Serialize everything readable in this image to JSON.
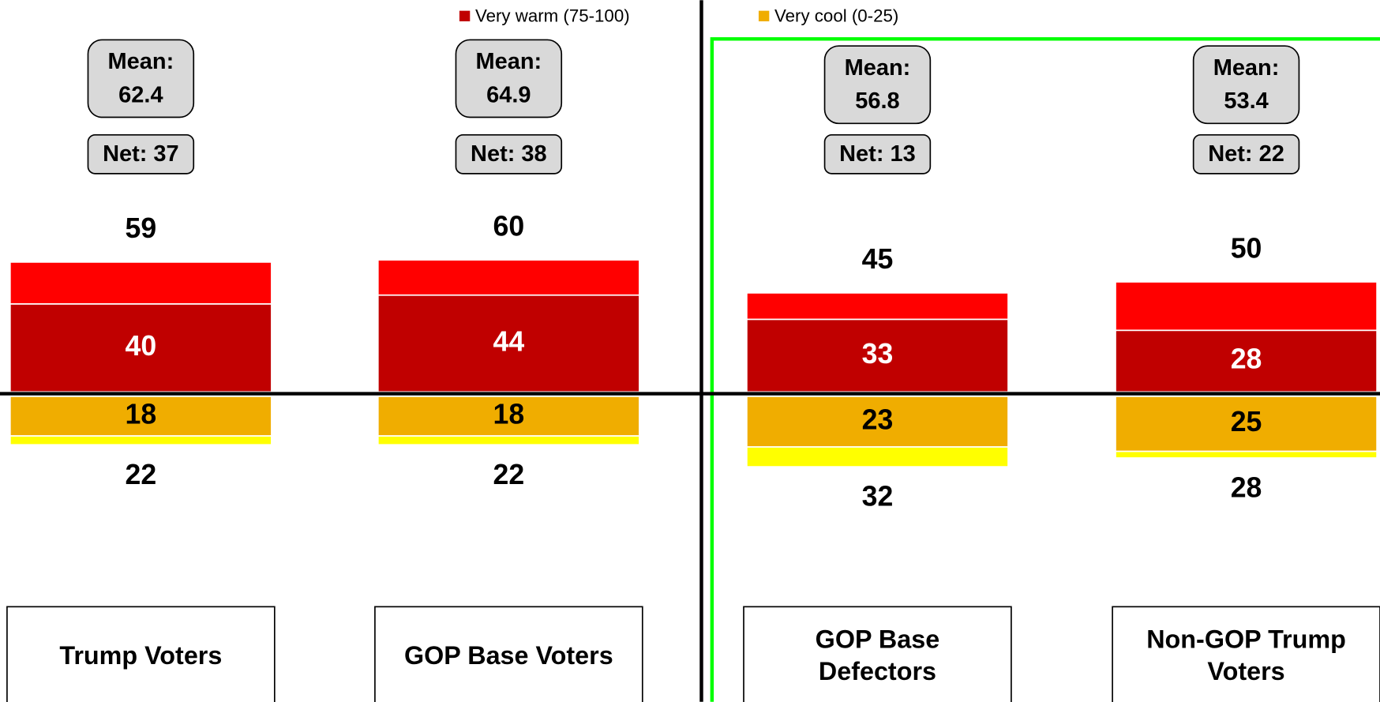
{
  "chart_data": {
    "type": "diverging_bar",
    "categories": [
      "Trump Voters",
      "GOP Base Voters",
      "GOP Base Defectors",
      "Non-GOP Trump Voters"
    ],
    "series": [
      {
        "name": "Very warm (75-100)",
        "color": "#c00000",
        "side": "up",
        "values": [
          40,
          44,
          33,
          28
        ]
      },
      {
        "color": "#ff0000",
        "side": "up",
        "values": [
          19,
          16,
          12,
          22
        ]
      },
      {
        "name": "Very cool (0-25)",
        "color": "#f0ad00",
        "side": "down",
        "values": [
          18,
          18,
          23,
          25
        ]
      },
      {
        "color": "#ffff00",
        "side": "down",
        "values": [
          4,
          4,
          9,
          3
        ]
      }
    ],
    "warm_totals": [
      59,
      60,
      45,
      50
    ],
    "cool_totals": [
      22,
      22,
      32,
      28
    ],
    "mean_label": "Mean:",
    "means": [
      62.4,
      64.9,
      56.8,
      53.4
    ],
    "net_labels": [
      "Net: 37",
      "Net: 38",
      "Net: 13",
      "Net: 22"
    ]
  }
}
